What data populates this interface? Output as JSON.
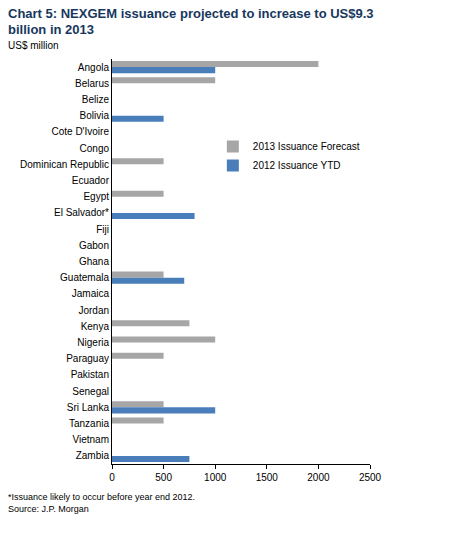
{
  "chart_data": {
    "type": "bar",
    "orientation": "horizontal",
    "title": "Chart 5: NEXGEM issuance projected to increase to US$9.3 billion in 2013",
    "subtitle": "US$ million",
    "categories": [
      "Angola",
      "Belarus",
      "Belize",
      "Bolivia",
      "Cote D'Ivoire",
      "Congo",
      "Dominican Republic",
      "Ecuador",
      "Egypt",
      "El Salvador*",
      "Fiji",
      "Gabon",
      "Ghana",
      "Guatemala",
      "Jamaica",
      "Jordan",
      "Kenya",
      "Nigeria",
      "Paraguay",
      "Pakistan",
      "Senegal",
      "Sri Lanka",
      "Tanzania",
      "Vietnam",
      "Zambia"
    ],
    "series": [
      {
        "name": "2013 Issuance Forecast",
        "color": "#A6A6A6",
        "values": [
          2000,
          1000,
          0,
          0,
          0,
          0,
          500,
          0,
          500,
          0,
          0,
          0,
          0,
          500,
          0,
          0,
          750,
          1000,
          500,
          0,
          0,
          500,
          500,
          0,
          0
        ]
      },
      {
        "name": "2012 Issuance YTD",
        "color": "#4A7EBB",
        "values": [
          1000,
          0,
          0,
          500,
          0,
          0,
          0,
          0,
          0,
          800,
          0,
          0,
          0,
          700,
          0,
          0,
          0,
          0,
          0,
          0,
          0,
          1000,
          0,
          0,
          750
        ]
      }
    ],
    "xlim": [
      0,
      2500
    ],
    "xticks": [
      0,
      500,
      1000,
      1500,
      2000,
      2500
    ],
    "grid": false,
    "legend": "upper right",
    "annotations": [
      "*Issuance likely to occur before year end 2012.",
      "Source: J.P. Morgan"
    ]
  }
}
